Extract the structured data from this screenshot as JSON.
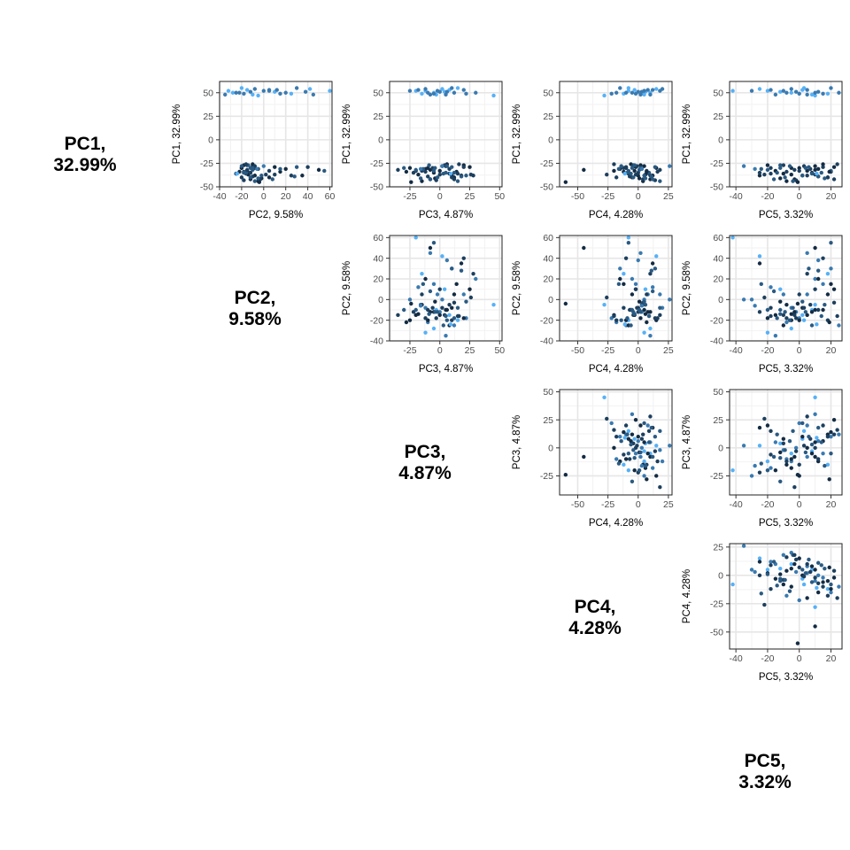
{
  "chart_data": {
    "type": "scatter",
    "variables": [
      {
        "name": "PC1",
        "variance": "32.99%",
        "axis_label": "PC1, 32.99%",
        "diag_line1": "PC1,",
        "diag_line2": "32.99%"
      },
      {
        "name": "PC2",
        "variance": "9.58%",
        "axis_label": "PC2, 9.58%",
        "diag_line1": "PC2,",
        "diag_line2": "9.58%"
      },
      {
        "name": "PC3",
        "variance": "4.87%",
        "axis_label": "PC3, 4.87%",
        "diag_line1": "PC3,",
        "diag_line2": "4.87%"
      },
      {
        "name": "PC4",
        "variance": "4.28%",
        "axis_label": "PC4, 4.28%",
        "diag_line1": "PC4,",
        "diag_line2": "4.28%"
      },
      {
        "name": "PC5",
        "variance": "3.32%",
        "axis_label": "PC5, 3.32%",
        "diag_line1": "PC5,",
        "diag_line2": "3.32%"
      }
    ],
    "axes": {
      "PC1": {
        "lim": [
          -50,
          62
        ],
        "ticks": [
          -50,
          -25,
          0,
          25,
          50
        ]
      },
      "PC2": {
        "lim": [
          -40,
          62
        ],
        "ticks": [
          -40,
          -20,
          0,
          20,
          40,
          60
        ]
      },
      "PC3": {
        "lim": [
          -42,
          52
        ],
        "ticks": [
          -25,
          0,
          25,
          50
        ]
      },
      "PC4": {
        "lim": [
          -65,
          28
        ],
        "ticks": [
          -50,
          -25,
          0,
          25
        ]
      },
      "PC5": {
        "lim": [
          -44,
          27
        ],
        "ticks": [
          -40,
          -20,
          0,
          20
        ]
      }
    },
    "panels": [
      {
        "x": "PC2",
        "y": "PC1"
      },
      {
        "x": "PC3",
        "y": "PC1"
      },
      {
        "x": "PC4",
        "y": "PC1"
      },
      {
        "x": "PC5",
        "y": "PC1"
      },
      {
        "x": "PC3",
        "y": "PC2"
      },
      {
        "x": "PC4",
        "y": "PC2"
      },
      {
        "x": "PC5",
        "y": "PC2"
      },
      {
        "x": "PC4",
        "y": "PC3"
      },
      {
        "x": "PC5",
        "y": "PC3"
      },
      {
        "x": "PC5",
        "y": "PC4"
      }
    ],
    "point_colors": [
      "#132b43",
      "#1d3f5e",
      "#2a5a82",
      "#3a7ab0",
      "#56b1f7"
    ],
    "points": [
      [
        52,
        -32,
        -12,
        5,
        -20,
        4
      ],
      [
        50,
        -28,
        -5,
        10,
        -5,
        4
      ],
      [
        53,
        -15,
        8,
        -3,
        2,
        4
      ],
      [
        48,
        -10,
        -3,
        5,
        8,
        4
      ],
      [
        55,
        -20,
        15,
        -8,
        3,
        4
      ],
      [
        51,
        10,
        4,
        6,
        -12,
        4
      ],
      [
        49,
        25,
        -15,
        -12,
        18,
        4
      ],
      [
        54,
        42,
        2,
        15,
        -25,
        4
      ],
      [
        47,
        -5,
        45,
        -28,
        10,
        4
      ],
      [
        52,
        60,
        -20,
        -8,
        -42,
        4
      ],
      [
        50,
        -22,
        -10,
        -18,
        -8,
        3
      ],
      [
        53,
        5,
        20,
        8,
        5,
        3
      ],
      [
        49,
        15,
        -5,
        -2,
        15,
        3
      ],
      [
        51,
        -12,
        0,
        3,
        -2,
        3
      ],
      [
        55,
        30,
        10,
        -15,
        20,
        3
      ],
      [
        48,
        -35,
        5,
        10,
        -15,
        3
      ],
      [
        52,
        0,
        -25,
        5,
        -30,
        3
      ],
      [
        50,
        20,
        30,
        -5,
        10,
        3
      ],
      [
        54,
        -8,
        -12,
        20,
        -5,
        3
      ],
      [
        51,
        38,
        6,
        0,
        12,
        3
      ],
      [
        49,
        -18,
        22,
        -22,
        0,
        3
      ],
      [
        53,
        12,
        -18,
        12,
        -18,
        3
      ],
      [
        50,
        -25,
        12,
        -10,
        25,
        3
      ],
      [
        52,
        5,
        -2,
        18,
        -10,
        3
      ],
      [
        48,
        45,
        -8,
        2,
        5,
        3
      ],
      [
        -30,
        -20,
        -10,
        -10,
        -5,
        0
      ],
      [
        -28,
        -10,
        5,
        5,
        10,
        0
      ],
      [
        -33,
        -15,
        -20,
        -3,
        -15,
        0
      ],
      [
        -38,
        -8,
        10,
        0,
        2,
        0
      ],
      [
        -35,
        -12,
        -5,
        8,
        8,
        0
      ],
      [
        -40,
        5,
        12,
        -5,
        18,
        0
      ],
      [
        -27,
        -18,
        20,
        2,
        -20,
        0
      ],
      [
        -42,
        -12,
        -8,
        10,
        -3,
        0
      ],
      [
        -31,
        20,
        -12,
        -15,
        12,
        0
      ],
      [
        -36,
        -25,
        8,
        -8,
        -10,
        0
      ],
      [
        -29,
        10,
        25,
        -2,
        22,
        0
      ],
      [
        -44,
        -5,
        -15,
        4,
        -8,
        0
      ],
      [
        -33,
        -15,
        0,
        -20,
        5,
        0
      ],
      [
        -38,
        35,
        18,
        12,
        -25,
        0
      ],
      [
        -30,
        -20,
        -25,
        15,
        0,
        0
      ],
      [
        -26,
        -10,
        6,
        -6,
        15,
        0
      ],
      [
        -41,
        -2,
        -4,
        1,
        -12,
        0
      ],
      [
        -34,
        15,
        14,
        -12,
        20,
        0
      ],
      [
        -37,
        -14,
        -18,
        6,
        -5,
        0
      ],
      [
        -32,
        50,
        -8,
        -45,
        10,
        0
      ],
      [
        -28,
        -8,
        2,
        -1,
        3,
        1
      ],
      [
        -36,
        -16,
        15,
        9,
        -18,
        1
      ],
      [
        -39,
        -10,
        -10,
        -7,
        12,
        1
      ],
      [
        -31,
        -5,
        8,
        3,
        7,
        1
      ],
      [
        -43,
        -18,
        -3,
        14,
        -2,
        1
      ],
      [
        -29,
        40,
        20,
        -10,
        15,
        1
      ],
      [
        -35,
        -12,
        -22,
        0,
        -25,
        1
      ],
      [
        -40,
        -20,
        10,
        -18,
        18,
        1
      ],
      [
        -33,
        5,
        -15,
        7,
        0,
        1
      ],
      [
        -27,
        -15,
        4,
        -4,
        -10,
        1
      ],
      [
        -38,
        25,
        28,
        10,
        5,
        1
      ],
      [
        -30,
        -8,
        -6,
        -12,
        -18,
        1
      ],
      [
        -42,
        -3,
        12,
        4,
        22,
        1
      ],
      [
        -34,
        -18,
        -12,
        16,
        -8,
        1
      ],
      [
        -37,
        10,
        0,
        -2,
        10,
        1
      ],
      [
        -30,
        -12,
        -4,
        2,
        4,
        2
      ],
      [
        -35,
        -18,
        12,
        -9,
        -14,
        2
      ],
      [
        -41,
        -5,
        -16,
        6,
        16,
        2
      ],
      [
        -28,
        -20,
        6,
        -14,
        -6,
        2
      ],
      [
        -39,
        28,
        18,
        11,
        12,
        2
      ],
      [
        -32,
        -10,
        -20,
        1,
        -20,
        2
      ],
      [
        -36,
        -25,
        3,
        -6,
        8,
        2
      ],
      [
        -44,
        -8,
        15,
        18,
        -4,
        2
      ],
      [
        -33,
        55,
        -5,
        -8,
        20,
        2
      ],
      [
        -27,
        -14,
        -9,
        -3,
        -12,
        2
      ],
      [
        -38,
        -2,
        22,
        5,
        2,
        2
      ],
      [
        -31,
        15,
        -14,
        -16,
        -24,
        2
      ],
      [
        -35,
        -16,
        5,
        9,
        14,
        2
      ],
      [
        -40,
        -12,
        -2,
        -4,
        -9,
        2
      ],
      [
        -29,
        30,
        10,
        14,
        6,
        2
      ],
      [
        -45,
        -4,
        -24,
        -60,
        -1,
        0
      ],
      [
        -26,
        -16,
        16,
        -20,
        24,
        1
      ],
      [
        -42,
        8,
        -8,
        12,
        -16,
        2
      ],
      [
        -34,
        -22,
        -28,
        7,
        19,
        0
      ],
      [
        -37,
        2,
        26,
        -26,
        -22,
        1
      ],
      [
        -31,
        -6,
        -16,
        3,
        -28,
        3
      ],
      [
        -36,
        -24,
        9,
        -11,
        11,
        4
      ],
      [
        -30,
        -10,
        -30,
        -5,
        -12,
        2
      ],
      [
        -32,
        -15,
        -35,
        18,
        -3,
        1
      ],
      [
        -28,
        0,
        2,
        26,
        -35,
        3
      ]
    ]
  }
}
